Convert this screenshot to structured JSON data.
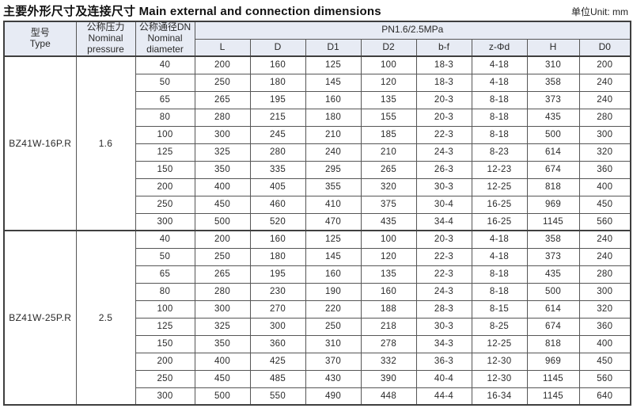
{
  "page": {
    "title_zh": "主要外形尺寸及连接尺寸",
    "title_en": "Main external and connection dimensions",
    "unit_label": "单位Unit: mm"
  },
  "colors": {
    "header_bg": "#e7ebf4",
    "border_dark": "#3f3f3f",
    "border_inner": "#565656",
    "text": "#2a2a2a"
  },
  "table": {
    "headers": {
      "type_zh": "型号",
      "type_en": "Type",
      "pressure_zh": "公称压力",
      "pressure_en1": "Nominal",
      "pressure_en2": "pressure",
      "diameter_zh": "公称通径DN",
      "diameter_en1": "Nominal",
      "diameter_en2": "diameter",
      "pn_span": "PN1.6/2.5MPa",
      "columns": [
        "L",
        "D",
        "D1",
        "D2",
        "b-f",
        "z-Φd",
        "H",
        "D0"
      ]
    },
    "groups": [
      {
        "type": "BZ41W-16P.R",
        "pressure": "1.6",
        "rows": [
          {
            "dn": "40",
            "values": [
              "200",
              "160",
              "125",
              "100",
              "18-3",
              "4-18",
              "310",
              "200"
            ]
          },
          {
            "dn": "50",
            "values": [
              "250",
              "180",
              "145",
              "120",
              "18-3",
              "4-18",
              "358",
              "240"
            ]
          },
          {
            "dn": "65",
            "values": [
              "265",
              "195",
              "160",
              "135",
              "20-3",
              "8-18",
              "373",
              "240"
            ]
          },
          {
            "dn": "80",
            "values": [
              "280",
              "215",
              "180",
              "155",
              "20-3",
              "8-18",
              "435",
              "280"
            ]
          },
          {
            "dn": "100",
            "values": [
              "300",
              "245",
              "210",
              "185",
              "22-3",
              "8-18",
              "500",
              "300"
            ]
          },
          {
            "dn": "125",
            "values": [
              "325",
              "280",
              "240",
              "210",
              "24-3",
              "8-23",
              "614",
              "320"
            ]
          },
          {
            "dn": "150",
            "values": [
              "350",
              "335",
              "295",
              "265",
              "26-3",
              "12-23",
              "674",
              "360"
            ]
          },
          {
            "dn": "200",
            "values": [
              "400",
              "405",
              "355",
              "320",
              "30-3",
              "12-25",
              "818",
              "400"
            ]
          },
          {
            "dn": "250",
            "values": [
              "450",
              "460",
              "410",
              "375",
              "30-4",
              "16-25",
              "969",
              "450"
            ]
          },
          {
            "dn": "300",
            "values": [
              "500",
              "520",
              "470",
              "435",
              "34-4",
              "16-25",
              "1145",
              "560"
            ]
          }
        ]
      },
      {
        "type": "BZ41W-25P.R",
        "pressure": "2.5",
        "rows": [
          {
            "dn": "40",
            "values": [
              "200",
              "160",
              "125",
              "100",
              "20-3",
              "4-18",
              "358",
              "240"
            ]
          },
          {
            "dn": "50",
            "values": [
              "250",
              "180",
              "145",
              "120",
              "22-3",
              "4-18",
              "373",
              "240"
            ]
          },
          {
            "dn": "65",
            "values": [
              "265",
              "195",
              "160",
              "135",
              "22-3",
              "8-18",
              "435",
              "280"
            ]
          },
          {
            "dn": "80",
            "values": [
              "280",
              "230",
              "190",
              "160",
              "24-3",
              "8-18",
              "500",
              "300"
            ]
          },
          {
            "dn": "100",
            "values": [
              "300",
              "270",
              "220",
              "188",
              "28-3",
              "8-15",
              "614",
              "320"
            ]
          },
          {
            "dn": "125",
            "values": [
              "325",
              "300",
              "250",
              "218",
              "30-3",
              "8-25",
              "674",
              "360"
            ]
          },
          {
            "dn": "150",
            "values": [
              "350",
              "360",
              "310",
              "278",
              "34-3",
              "12-25",
              "818",
              "400"
            ]
          },
          {
            "dn": "200",
            "values": [
              "400",
              "425",
              "370",
              "332",
              "36-3",
              "12-30",
              "969",
              "450"
            ]
          },
          {
            "dn": "250",
            "values": [
              "450",
              "485",
              "430",
              "390",
              "40-4",
              "12-30",
              "1145",
              "560"
            ]
          },
          {
            "dn": "300",
            "values": [
              "500",
              "550",
              "490",
              "448",
              "44-4",
              "16-34",
              "1145",
              "640"
            ]
          }
        ]
      }
    ]
  }
}
